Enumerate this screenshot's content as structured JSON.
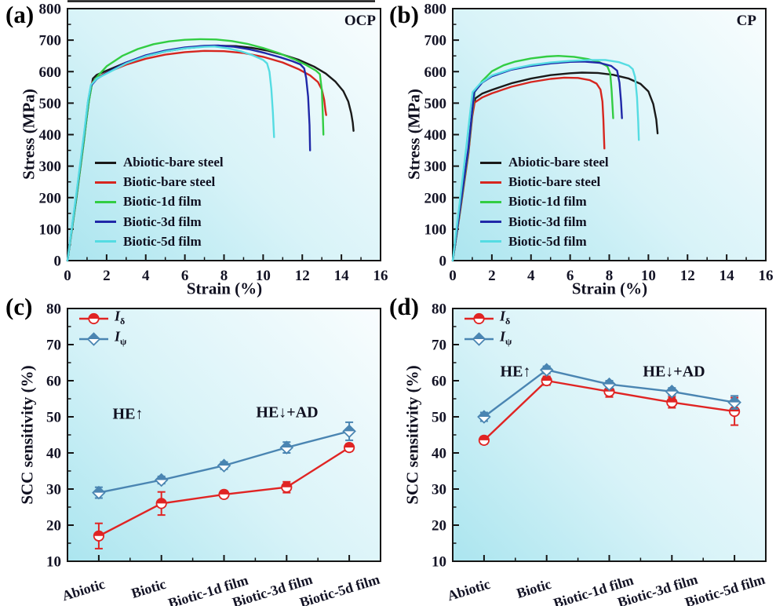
{
  "style": {
    "axis_color": "#151515",
    "text_color": "#131325",
    "plot_gradient_start": "#abe5ef",
    "plot_gradient_mid": "#d8f3f8",
    "plot_gradient_end": "#f9fdfe"
  },
  "chart_data": [
    {
      "panel_label": "(a)",
      "corner_label": "OCP",
      "type": "line",
      "xlabel": "Strain (%)",
      "ylabel": "Stress (MPa)",
      "xlim": [
        0,
        16
      ],
      "ylim": [
        0,
        800
      ],
      "xtick_step": 2,
      "ytick_step": 100,
      "series": [
        {
          "name": "Abiotic-bare steel",
          "color": "#1a1a1a",
          "points": [
            [
              0,
              0
            ],
            [
              0.45,
              200
            ],
            [
              0.85,
              390
            ],
            [
              1.1,
              510
            ],
            [
              1.3,
              578
            ],
            [
              1.5,
              590
            ],
            [
              2,
              603
            ],
            [
              3,
              629
            ],
            [
              4,
              649
            ],
            [
              5,
              664
            ],
            [
              6,
              674
            ],
            [
              7,
              680
            ],
            [
              7.8,
              682
            ],
            [
              8.6,
              681
            ],
            [
              9.4,
              676
            ],
            [
              10.2,
              667
            ],
            [
              11,
              654
            ],
            [
              11.8,
              638
            ],
            [
              12.6,
              616
            ],
            [
              13.2,
              594
            ],
            [
              13.7,
              568
            ],
            [
              14.1,
              538
            ],
            [
              14.35,
              505
            ],
            [
              14.5,
              468
            ],
            [
              14.58,
              438
            ],
            [
              14.62,
              412
            ]
          ]
        },
        {
          "name": "Biotic-bare steel",
          "color": "#d6261f",
          "points": [
            [
              0,
              0
            ],
            [
              0.45,
              195
            ],
            [
              0.85,
              385
            ],
            [
              1.05,
              495
            ],
            [
              1.25,
              565
            ],
            [
              1.5,
              580
            ],
            [
              2,
              597
            ],
            [
              3,
              622
            ],
            [
              4,
              641
            ],
            [
              5,
              654
            ],
            [
              6,
              662
            ],
            [
              7,
              666
            ],
            [
              8,
              665
            ],
            [
              9,
              659
            ],
            [
              10,
              647
            ],
            [
              11,
              629
            ],
            [
              11.8,
              608
            ],
            [
              12.4,
              588
            ],
            [
              12.8,
              567
            ],
            [
              13.0,
              543
            ],
            [
              13.12,
              510
            ],
            [
              13.18,
              478
            ],
            [
              13.22,
              462
            ]
          ]
        },
        {
          "name": "Biotic-1d film",
          "color": "#32cd43",
          "points": [
            [
              0,
              0
            ],
            [
              0.45,
              195
            ],
            [
              0.85,
              385
            ],
            [
              1.05,
              490
            ],
            [
              1.25,
              562
            ],
            [
              1.6,
              590
            ],
            [
              2,
              617
            ],
            [
              2.8,
              650
            ],
            [
              3.6,
              672
            ],
            [
              4.4,
              687
            ],
            [
              5.2,
              696
            ],
            [
              6,
              701
            ],
            [
              6.8,
              703
            ],
            [
              7.6,
              702
            ],
            [
              8.4,
              697
            ],
            [
              9.2,
              688
            ],
            [
              10,
              675
            ],
            [
              10.8,
              659
            ],
            [
              11.6,
              639
            ],
            [
              12.2,
              621
            ],
            [
              12.7,
              603
            ],
            [
              12.9,
              592
            ],
            [
              13.0,
              540
            ],
            [
              13.05,
              463
            ],
            [
              13.08,
              400
            ]
          ]
        },
        {
          "name": "Biotic-3d film",
          "color": "#2028a8",
          "points": [
            [
              0,
              0
            ],
            [
              0.45,
              205
            ],
            [
              0.85,
              400
            ],
            [
              1.05,
              505
            ],
            [
              1.2,
              555
            ],
            [
              1.5,
              577
            ],
            [
              2,
              596
            ],
            [
              3,
              629
            ],
            [
              4,
              652
            ],
            [
              5,
              667
            ],
            [
              6,
              677
            ],
            [
              7,
              682
            ],
            [
              7.7,
              683
            ],
            [
              8.5,
              679
            ],
            [
              9.3,
              671
            ],
            [
              10.1,
              659
            ],
            [
              10.9,
              645
            ],
            [
              11.5,
              633
            ],
            [
              11.9,
              623
            ],
            [
              12.1,
              610
            ],
            [
              12.2,
              580
            ],
            [
              12.3,
              520
            ],
            [
              12.37,
              430
            ],
            [
              12.4,
              350
            ]
          ]
        },
        {
          "name": "Biotic-5d film",
          "color": "#55dce2",
          "points": [
            [
              0,
              0
            ],
            [
              0.45,
              210
            ],
            [
              0.85,
              405
            ],
            [
              1.05,
              508
            ],
            [
              1.2,
              558
            ],
            [
              1.5,
              578
            ],
            [
              2,
              594
            ],
            [
              3,
              626
            ],
            [
              4,
              649
            ],
            [
              5,
              664
            ],
            [
              6,
              674
            ],
            [
              7,
              679
            ],
            [
              7.5,
              680
            ],
            [
              8.2,
              674
            ],
            [
              8.9,
              664
            ],
            [
              9.5,
              651
            ],
            [
              10,
              637
            ],
            [
              10.2,
              626
            ],
            [
              10.32,
              600
            ],
            [
              10.42,
              545
            ],
            [
              10.5,
              470
            ],
            [
              10.56,
              392
            ]
          ]
        }
      ]
    },
    {
      "panel_label": "(b)",
      "corner_label": "CP",
      "type": "line",
      "xlabel": "Strain (%)",
      "ylabel": "Stress (MPa)",
      "xlim": [
        0,
        16
      ],
      "ylim": [
        0,
        800
      ],
      "xtick_step": 2,
      "ytick_step": 100,
      "series": [
        {
          "name": "Abiotic-bare steel",
          "color": "#1a1a1a",
          "points": [
            [
              0,
              0
            ],
            [
              0.4,
              170
            ],
            [
              0.8,
              345
            ],
            [
              1.0,
              465
            ],
            [
              1.15,
              515
            ],
            [
              1.5,
              530
            ],
            [
              2,
              542
            ],
            [
              3,
              563
            ],
            [
              4,
              578
            ],
            [
              5,
              589
            ],
            [
              6,
              595
            ],
            [
              6.6,
              597
            ],
            [
              7.4,
              596
            ],
            [
              8.2,
              590
            ],
            [
              9,
              578
            ],
            [
              9.6,
              561
            ],
            [
              10,
              537
            ],
            [
              10.25,
              497
            ],
            [
              10.4,
              448
            ],
            [
              10.47,
              404
            ]
          ]
        },
        {
          "name": "Biotic-bare steel",
          "color": "#d6261f",
          "points": [
            [
              0,
              0
            ],
            [
              0.4,
              165
            ],
            [
              0.8,
              340
            ],
            [
              1.0,
              458
            ],
            [
              1.12,
              502
            ],
            [
              1.5,
              518
            ],
            [
              2,
              531
            ],
            [
              3,
              552
            ],
            [
              4,
              567
            ],
            [
              5,
              577
            ],
            [
              5.7,
              581
            ],
            [
              6.4,
              580
            ],
            [
              7,
              573
            ],
            [
              7.35,
              562
            ],
            [
              7.55,
              543
            ],
            [
              7.65,
              505
            ],
            [
              7.7,
              448
            ],
            [
              7.73,
              390
            ],
            [
              7.75,
              356
            ]
          ]
        },
        {
          "name": "Biotic-1d film",
          "color": "#32cd43",
          "points": [
            [
              0,
              0
            ],
            [
              0.4,
              172
            ],
            [
              0.8,
              350
            ],
            [
              1.0,
              470
            ],
            [
              1.12,
              535
            ],
            [
              1.5,
              570
            ],
            [
              2,
              601
            ],
            [
              2.6,
              620
            ],
            [
              3.2,
              632
            ],
            [
              4,
              642
            ],
            [
              4.8,
              648
            ],
            [
              5.4,
              650
            ],
            [
              6.2,
              647
            ],
            [
              6.9,
              640
            ],
            [
              7.5,
              630
            ],
            [
              7.9,
              617
            ],
            [
              8.05,
              595
            ],
            [
              8.12,
              540
            ],
            [
              8.17,
              488
            ],
            [
              8.2,
              452
            ]
          ]
        },
        {
          "name": "Biotic-3d film",
          "color": "#2028a8",
          "points": [
            [
              0,
              0
            ],
            [
              0.4,
              178
            ],
            [
              0.8,
              358
            ],
            [
              1.0,
              478
            ],
            [
              1.1,
              535
            ],
            [
              1.5,
              565
            ],
            [
              2,
              585
            ],
            [
              3,
              606
            ],
            [
              4,
              618
            ],
            [
              5,
              626
            ],
            [
              6,
              631
            ],
            [
              6.7,
              632
            ],
            [
              7.5,
              628
            ],
            [
              8.1,
              618
            ],
            [
              8.4,
              603
            ],
            [
              8.52,
              565
            ],
            [
              8.6,
              505
            ],
            [
              8.65,
              452
            ]
          ]
        },
        {
          "name": "Biotic-5d film",
          "color": "#55dce2",
          "points": [
            [
              0,
              0
            ],
            [
              0.35,
              180
            ],
            [
              0.7,
              365
            ],
            [
              0.92,
              485
            ],
            [
              1.02,
              535
            ],
            [
              1.4,
              562
            ],
            [
              2,
              588
            ],
            [
              3,
              608
            ],
            [
              4,
              621
            ],
            [
              5,
              629
            ],
            [
              6,
              634
            ],
            [
              7,
              637
            ],
            [
              7.8,
              637
            ],
            [
              8.5,
              630
            ],
            [
              9.0,
              619
            ],
            [
              9.2,
              608
            ],
            [
              9.32,
              583
            ],
            [
              9.42,
              518
            ],
            [
              9.48,
              440
            ],
            [
              9.51,
              383
            ]
          ]
        }
      ]
    },
    {
      "panel_label": "(c)",
      "type": "scatter-line-errorbar",
      "ylabel": "SCC sensitivity (%)",
      "ylim": [
        10,
        80
      ],
      "ytick_step": 10,
      "categories": [
        "Abiotic",
        "Biotic",
        "Biotic-1d film",
        "Biotic-3d film",
        "Biotic-5d film"
      ],
      "series": [
        {
          "legend_base": "I",
          "legend_sub": "δ",
          "marker": "circle",
          "color": "#e02423",
          "values": [
            17,
            26,
            28.5,
            30.5,
            41.5
          ],
          "errors": [
            3.5,
            3.2,
            1.0,
            1.5,
            1.0
          ]
        },
        {
          "legend_base": "I",
          "legend_sub": "ψ",
          "marker": "diamond",
          "color": "#4a85b2",
          "values": [
            29,
            32.5,
            36.5,
            41.5,
            46
          ],
          "errors": [
            1.5,
            1.0,
            1.0,
            1.5,
            2.5
          ]
        }
      ],
      "annotations": [
        {
          "text": "HE↑"
        },
        {
          "text": "HE↓+AD"
        }
      ]
    },
    {
      "panel_label": "(d)",
      "type": "scatter-line-errorbar",
      "ylabel": "SCC sensitivity (%)",
      "ylim": [
        10,
        80
      ],
      "ytick_step": 10,
      "categories": [
        "Abiotic",
        "Biotic",
        "Biotic-1d film",
        "Biotic-3d film",
        "Biotic-5d film"
      ],
      "series": [
        {
          "legend_base": "I",
          "legend_sub": "δ",
          "marker": "circle",
          "color": "#e02423",
          "values": [
            43.5,
            60,
            57,
            54,
            51.5
          ],
          "errors": [
            1.0,
            1.2,
            1.5,
            1.5,
            3.8
          ]
        },
        {
          "legend_base": "I",
          "legend_sub": "ψ",
          "marker": "diamond",
          "color": "#4a85b2",
          "values": [
            50,
            63,
            59,
            57,
            54
          ],
          "errors": [
            1.2,
            1.0,
            1.0,
            1.0,
            1.8
          ]
        }
      ],
      "annotations": [
        {
          "text": "HE↑"
        },
        {
          "text": "HE↓+AD"
        }
      ]
    }
  ]
}
